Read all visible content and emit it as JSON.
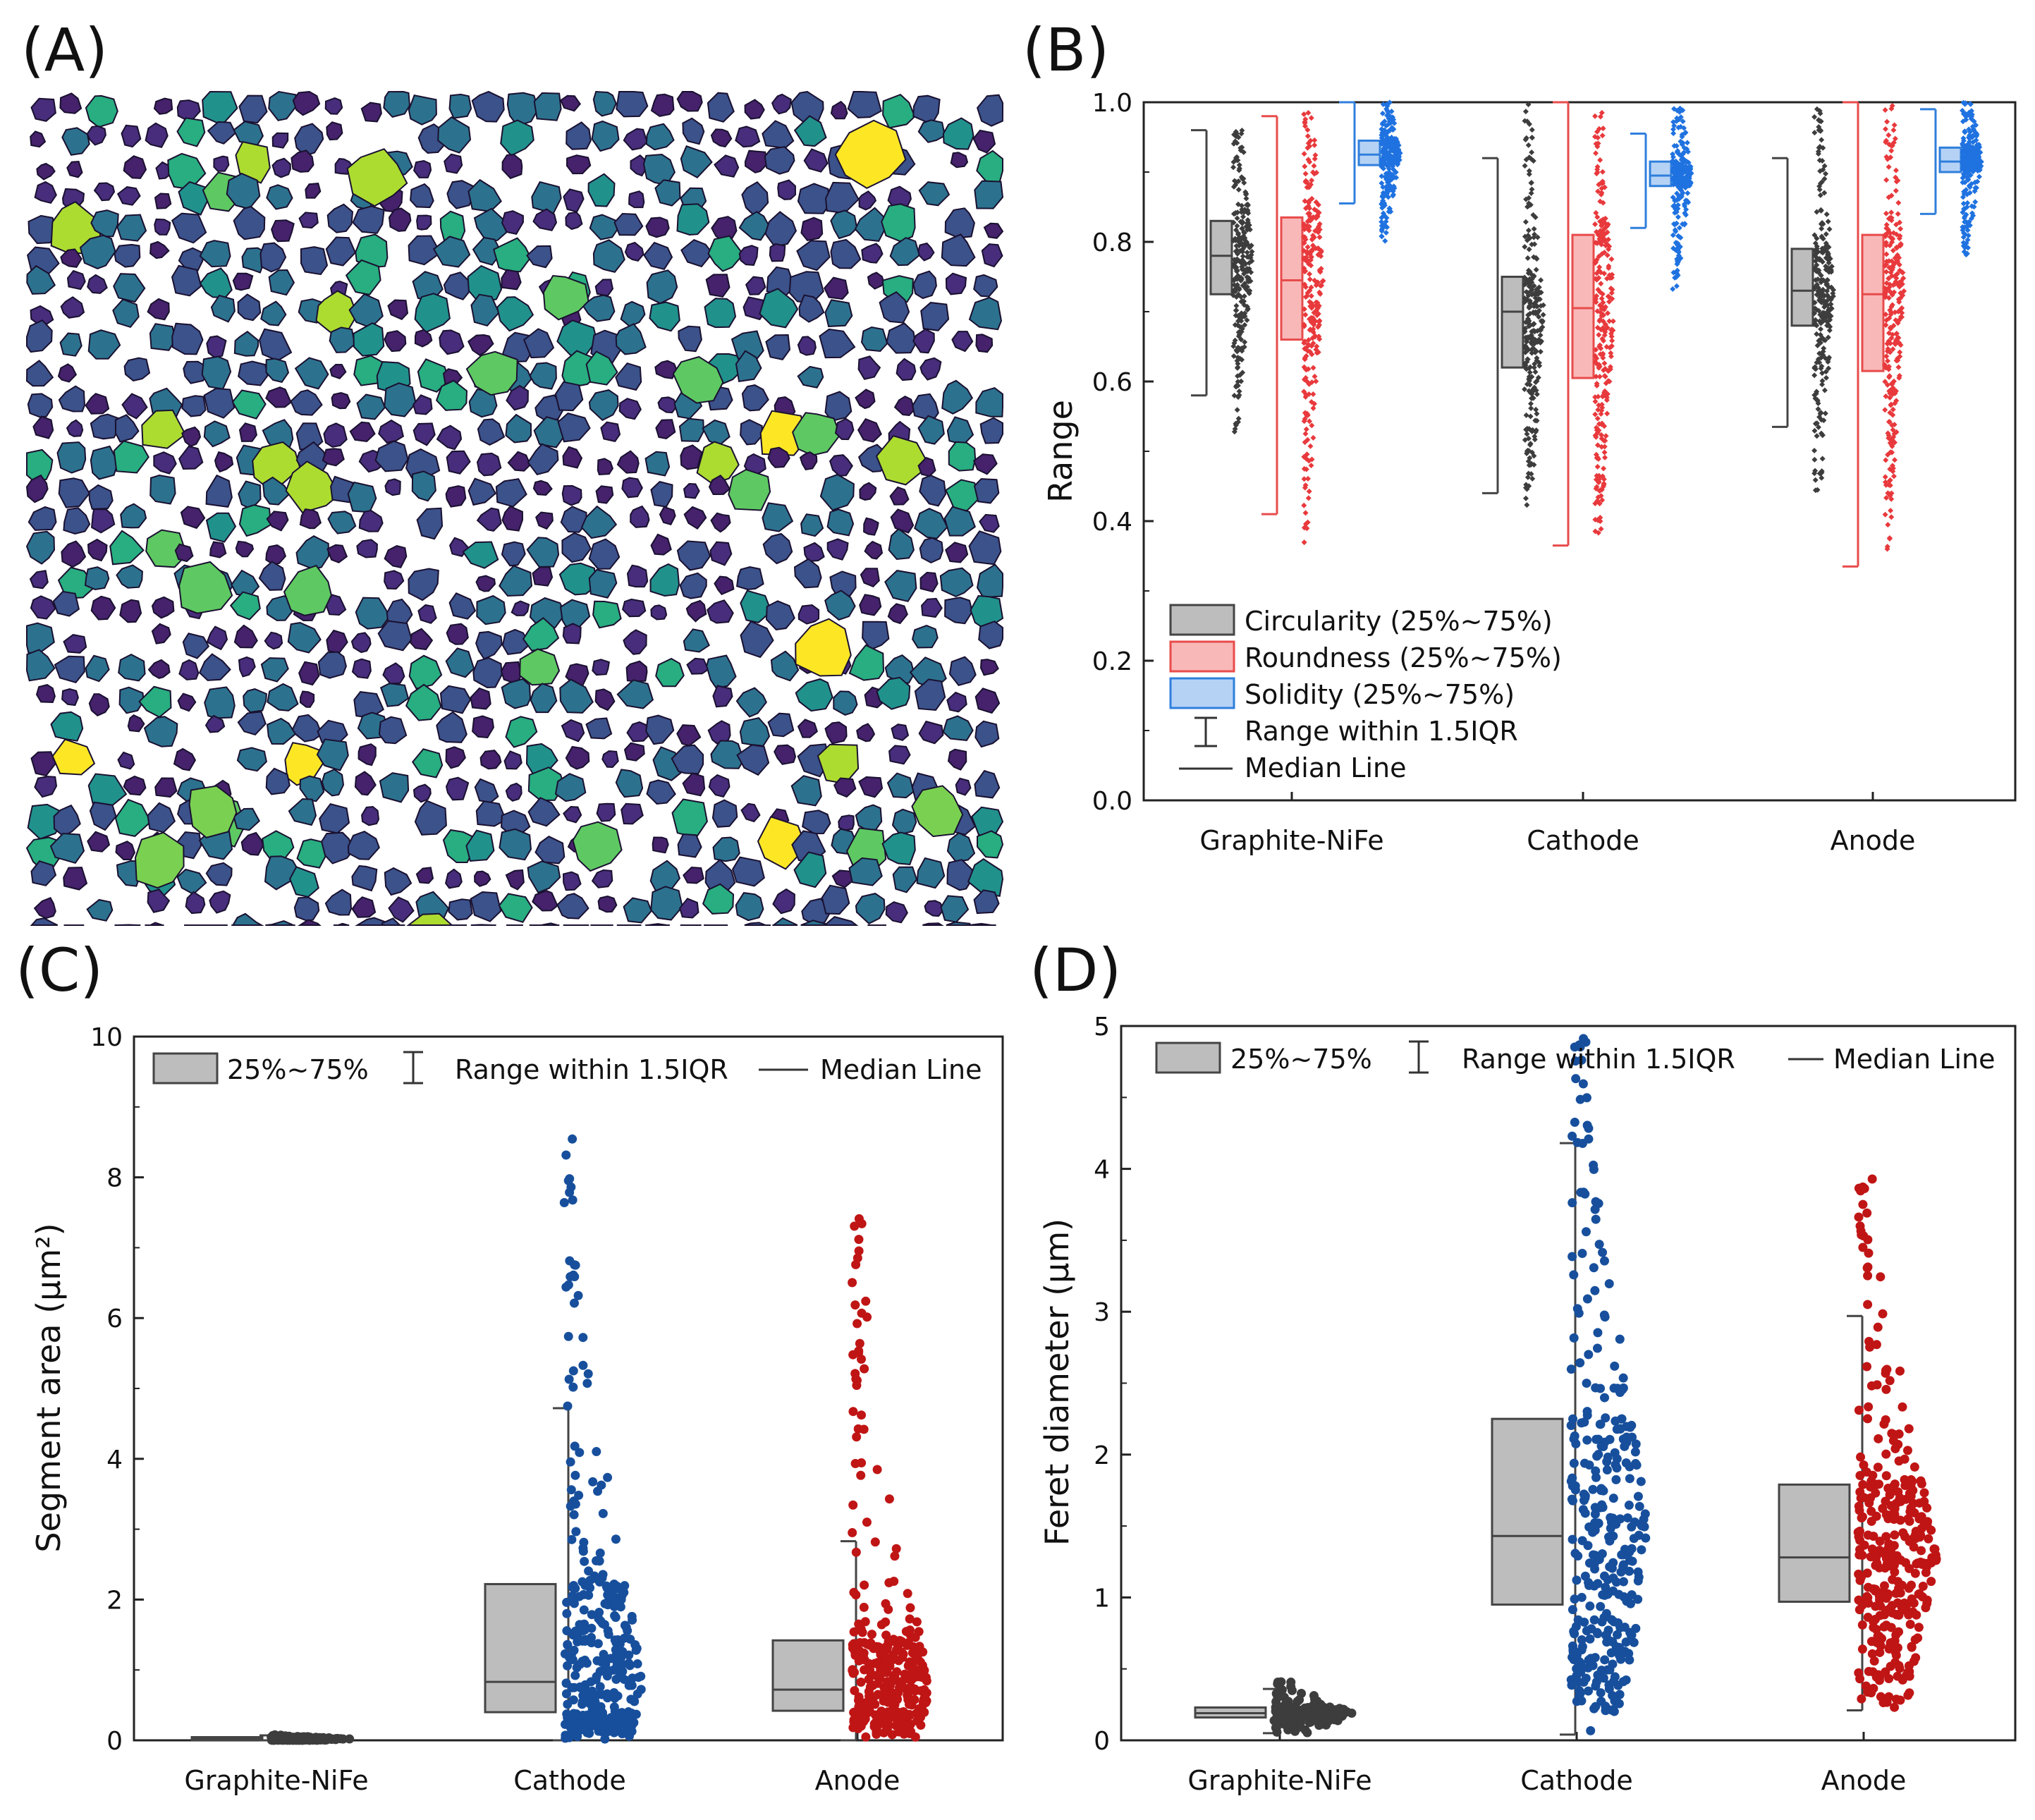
{
  "panel_labels": [
    "(A)",
    "(B)",
    "(C)",
    "(D)"
  ],
  "colors": {
    "gray_fill": "#bdbdbd",
    "gray_points": "#3d3d3d",
    "red_fill": "#f9b8b8",
    "red_edge": "#e84b4b",
    "red_points": "#e8393c",
    "blue_fill": "#b5d2f5",
    "blue_edge": "#2f7fdc",
    "blue_points": "#1f72e0",
    "c_blue_points": "#174f9c",
    "c_red_points": "#c01515",
    "viridis": [
      "#45226b",
      "#472d7b",
      "#3b528b",
      "#2c728e",
      "#21918c",
      "#28ae80",
      "#5ec962",
      "#addc30",
      "#fde725"
    ]
  },
  "chart_data": [
    {
      "panel": "A",
      "type": "heatmap",
      "description_label": "(A)"
    },
    {
      "panel": "B",
      "type": "box",
      "title": "",
      "xlabel": "",
      "ylabel": "Range",
      "ylim": [
        0,
        1.0
      ],
      "yticks": [
        "0.0",
        "0.2",
        "0.4",
        "0.6",
        "0.8",
        "1.0"
      ],
      "categories": [
        "Graphite-NiFe",
        "Cathode",
        "Anode"
      ],
      "series": [
        {
          "name": "Circularity",
          "legend": "Circularity (25%~75%)",
          "q1": [
            0.725,
            0.62,
            0.68
          ],
          "median": [
            0.78,
            0.7,
            0.73
          ],
          "q3": [
            0.83,
            0.75,
            0.79
          ],
          "whisker_low": [
            0.58,
            0.44,
            0.535
          ],
          "whisker_high": [
            0.96,
            0.92,
            0.92
          ],
          "min": [
            0.52,
            0.415,
            0.425
          ],
          "max": [
            0.96,
            1.0,
            1.0
          ]
        },
        {
          "name": "Roundness",
          "legend": "Roundness (25%~75%)",
          "q1": [
            0.66,
            0.605,
            0.615
          ],
          "median": [
            0.745,
            0.705,
            0.725
          ],
          "q3": [
            0.835,
            0.81,
            0.81
          ],
          "whisker_low": [
            0.41,
            0.365,
            0.335
          ],
          "whisker_high": [
            0.98,
            1.0,
            1.0
          ],
          "min": [
            0.365,
            0.36,
            0.335
          ],
          "max": [
            0.985,
            1.0,
            1.0
          ]
        },
        {
          "name": "Solidity",
          "legend": "Solidity (25%~75%)",
          "q1": [
            0.91,
            0.88,
            0.9
          ],
          "median": [
            0.925,
            0.895,
            0.915
          ],
          "q3": [
            0.945,
            0.915,
            0.935
          ],
          "whisker_low": [
            0.855,
            0.82,
            0.84
          ],
          "whisker_high": [
            1.0,
            0.955,
            0.99
          ],
          "min": [
            0.79,
            0.72,
            0.765
          ],
          "max": [
            1.0,
            1.0,
            1.0
          ]
        }
      ],
      "legend_extra": [
        "Range within 1.5IQR",
        "Median Line"
      ],
      "legend_position": "bottom-left"
    },
    {
      "panel": "C",
      "type": "box",
      "xlabel": "",
      "ylabel": "Segment area (μm²)",
      "ylim": [
        0,
        10
      ],
      "yticks": [
        "0",
        "2",
        "4",
        "6",
        "8",
        "10"
      ],
      "categories": [
        "Graphite-NiFe",
        "Cathode",
        "Anode"
      ],
      "q1": [
        0.005,
        0.4,
        0.42
      ],
      "median": [
        0.02,
        0.83,
        0.72
      ],
      "q3": [
        0.045,
        2.22,
        1.42
      ],
      "whisker_low": [
        0.0,
        0.0,
        0.0
      ],
      "whisker_high": [
        0.07,
        4.72,
        2.83
      ],
      "max": [
        0.08,
        8.6,
        7.5
      ],
      "legend": [
        "25%~75%",
        "Range within 1.5IQR",
        "Median Line"
      ],
      "legend_position": "top"
    },
    {
      "panel": "D",
      "type": "box",
      "xlabel": "",
      "ylabel": "Feret diameter (μm)",
      "ylim": [
        0,
        5
      ],
      "yticks": [
        "0",
        "1",
        "2",
        "3",
        "4",
        "5"
      ],
      "categories": [
        "Graphite-NiFe",
        "Cathode",
        "Anode"
      ],
      "q1": [
        0.16,
        0.95,
        0.97
      ],
      "median": [
        0.19,
        1.43,
        1.28
      ],
      "q3": [
        0.23,
        2.25,
        1.79
      ],
      "whisker_low": [
        0.05,
        0.04,
        0.21
      ],
      "whisker_high": [
        0.36,
        4.18,
        2.97
      ],
      "max": [
        0.42,
        4.95,
        3.95
      ],
      "legend": [
        "25%~75%",
        "Range within 1.5IQR",
        "Median Line"
      ],
      "legend_position": "top"
    }
  ]
}
